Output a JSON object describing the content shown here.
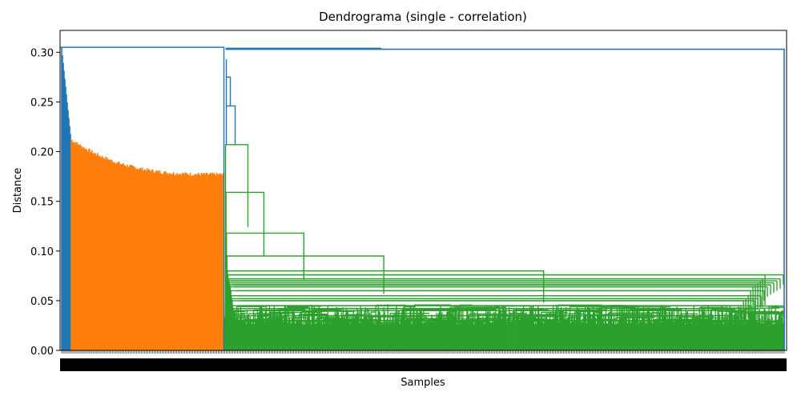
{
  "chart_data": {
    "type": "dendrogram",
    "title": "Dendrograma (single - correlation)",
    "xlabel": "Samples",
    "ylabel": "Distance",
    "ylim": [
      0,
      0.322
    ],
    "yticks": [
      0.0,
      0.05,
      0.1,
      0.15,
      0.2,
      0.25,
      0.3
    ],
    "ytick_labels": [
      "0.00",
      "0.05",
      "0.10",
      "0.15",
      "0.20",
      "0.25",
      "0.30"
    ],
    "grid": false,
    "legend": "none",
    "root_height": 0.305,
    "clusters": [
      {
        "name": "blue",
        "color": "#1f77b4",
        "leaf_range": [
          0,
          12
        ],
        "top_height": 0.305,
        "floor_height": 0.21,
        "merge_heights": [
          0.305,
          0.3,
          0.295,
          0.285,
          0.275,
          0.265,
          0.255,
          0.245,
          0.238,
          0.23,
          0.222,
          0.215,
          0.21
        ]
      },
      {
        "name": "orange",
        "color": "#ff7f0e",
        "leaf_range": [
          12,
          203
        ],
        "top_height": 0.21,
        "floor_height": 0.175,
        "merge_heights": [
          0.21,
          0.205,
          0.198,
          0.193,
          0.19,
          0.187,
          0.184,
          0.183,
          0.182,
          0.181,
          0.18,
          0.178,
          0.177,
          0.176,
          0.175
        ]
      },
      {
        "name": "green",
        "color": "#2ca02c",
        "leaf_range": [
          203,
          905
        ],
        "top_height": 0.207,
        "merge_heights": [
          0.207,
          0.159,
          0.118,
          0.095,
          0.08,
          0.076,
          0.072,
          0.07,
          0.068,
          0.066,
          0.064,
          0.06,
          0.055,
          0.052,
          0.05,
          0.045,
          0.042,
          0.04,
          0.035,
          0.03
        ]
      }
    ],
    "link_color_above_threshold": "#1f77b4",
    "high_links": [
      0.305,
      0.304,
      0.303,
      0.293,
      0.275,
      0.246
    ]
  }
}
